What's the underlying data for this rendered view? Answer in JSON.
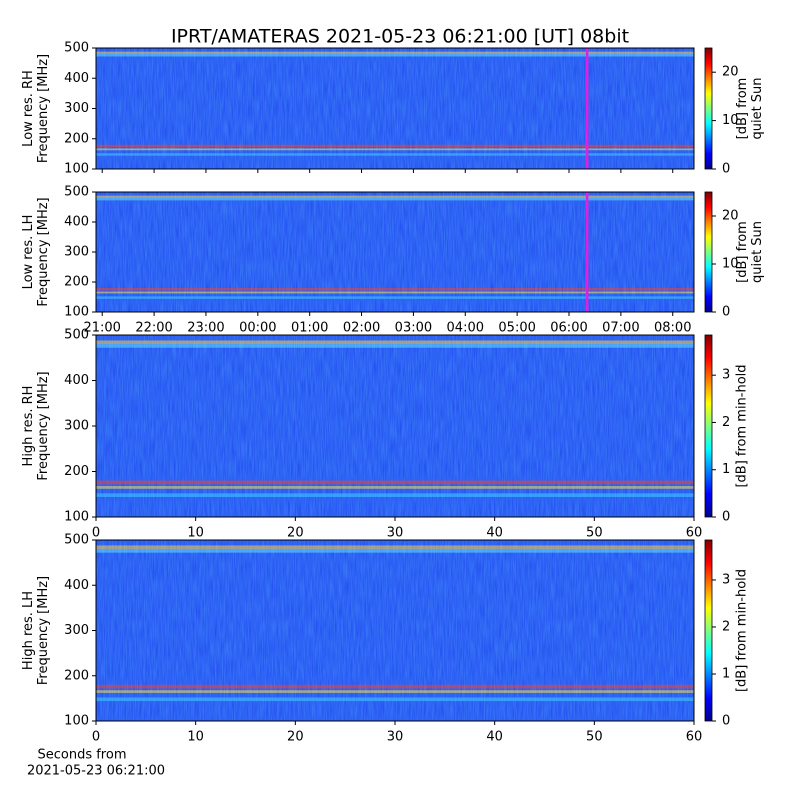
{
  "title": "IPRT/AMATERAS 2021-05-23 06:21:00 [UT]   08bit",
  "chart_data": [
    {
      "type": "heatmap",
      "ylabel": [
        "Low res. RH",
        "Frequency [MHz]"
      ],
      "ylim": [
        100,
        500
      ],
      "yticks": [
        100,
        200,
        300,
        400,
        500
      ],
      "xlim": [
        20.88,
        32.41
      ],
      "xticks": [
        21,
        22,
        23,
        24,
        25,
        26,
        27,
        28,
        29,
        30,
        31,
        32
      ],
      "marker_x": 30.35,
      "marker_color": "#e020e0",
      "colorbar": {
        "label": [
          "[dB] from",
          "quiet Sun"
        ],
        "lim": [
          0,
          25
        ],
        "ticks": [
          0,
          10,
          20
        ]
      }
    },
    {
      "type": "heatmap",
      "ylabel": [
        "Low res. LH",
        "Frequency [MHz]"
      ],
      "ylim": [
        100,
        500
      ],
      "yticks": [
        100,
        200,
        300,
        400,
        500
      ],
      "xlim": [
        20.88,
        32.41
      ],
      "xticks": [
        {
          "value": 21,
          "label": "21:00"
        },
        {
          "value": 22,
          "label": "22:00"
        },
        {
          "value": 23,
          "label": "23:00"
        },
        {
          "value": 24,
          "label": "00:00"
        },
        {
          "value": 25,
          "label": "01:00"
        },
        {
          "value": 26,
          "label": "02:00"
        },
        {
          "value": 27,
          "label": "03:00"
        },
        {
          "value": 28,
          "label": "04:00"
        },
        {
          "value": 29,
          "label": "05:00"
        },
        {
          "value": 30,
          "label": "06:00"
        },
        {
          "value": 31,
          "label": "07:00"
        },
        {
          "value": 32,
          "label": "08:00"
        }
      ],
      "marker_x": 30.35,
      "marker_color": "#e020e0",
      "colorbar": {
        "label": [
          "[dB] from",
          "quiet Sun"
        ],
        "lim": [
          0,
          25
        ],
        "ticks": [
          0,
          10,
          20
        ]
      }
    },
    {
      "type": "heatmap",
      "ylabel": [
        "High res. RH",
        "Frequency [MHz]"
      ],
      "ylim": [
        100,
        500
      ],
      "yticks": [
        100,
        200,
        300,
        400,
        500
      ],
      "xlim": [
        0,
        60
      ],
      "xticks": [
        0,
        10,
        20,
        30,
        40,
        50,
        60
      ],
      "colorbar": {
        "label": [
          "[dB] from min-hold"
        ],
        "lim": [
          0,
          3.85
        ],
        "ticks": [
          0,
          1,
          2,
          3
        ]
      }
    },
    {
      "type": "heatmap",
      "ylabel": [
        "High res. LH",
        "Frequency [MHz]"
      ],
      "ylim": [
        100,
        500
      ],
      "yticks": [
        100,
        200,
        300,
        400,
        500
      ],
      "xlim": [
        0,
        60
      ],
      "xticks": [
        0,
        10,
        20,
        30,
        40,
        50,
        60
      ],
      "xtick_labels": true,
      "xlabel": [
        "Seconds from",
        "2021-05-23 06:21:00"
      ],
      "colorbar": {
        "label": [
          "[dB] from min-hold"
        ],
        "lim": [
          0,
          3.85
        ],
        "ticks": [
          0,
          1,
          2,
          3
        ]
      }
    }
  ]
}
